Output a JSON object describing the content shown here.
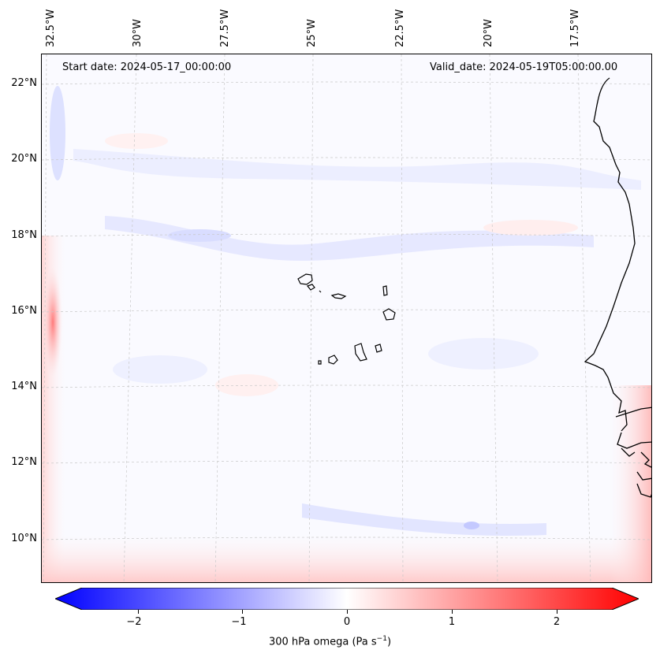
{
  "map": {
    "header": {
      "start_date": "Start date: 2024-05-17_00:00:00",
      "valid_date": "Valid_date: 2024-05-19T05:00:00.00"
    },
    "lon_labels": [
      "32.5°W",
      "30°W",
      "27.5°W",
      "25°W",
      "22.5°W",
      "20°W",
      "17.5°W"
    ],
    "lat_labels": [
      "22°N",
      "20°N",
      "18°N",
      "16°N",
      "14°N",
      "12°N",
      "10°N"
    ],
    "colorbar": {
      "ticks": [
        "−2",
        "−1",
        "0",
        "1",
        "2"
      ],
      "label_text": "300 hPa omega (Pa s",
      "label_sup": "−1",
      "label_close": ")",
      "min_color": "#0000ff",
      "mid_color": "#ffffff",
      "max_color": "#ff0000",
      "range": [
        -2.6,
        2.6
      ]
    }
  }
}
